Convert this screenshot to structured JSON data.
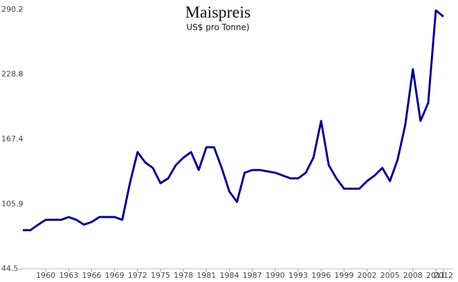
{
  "chart_data": {
    "type": "line",
    "title": "Maispreis",
    "subtitle": "US$ pro Tonne)",
    "categories": [
      null,
      null,
      null,
      "1960",
      null,
      null,
      "1963",
      null,
      null,
      "1966",
      null,
      null,
      "1969",
      null,
      null,
      "1972",
      null,
      null,
      "1975",
      null,
      null,
      "1978",
      null,
      null,
      "1981",
      null,
      null,
      "1984",
      null,
      null,
      "1987",
      null,
      null,
      "1990",
      null,
      null,
      "1993",
      null,
      null,
      "1996",
      null,
      null,
      "1999",
      null,
      null,
      "2002",
      null,
      null,
      "2005",
      null,
      null,
      "2008",
      null,
      null,
      "2011",
      "2012"
    ],
    "series": [
      {
        "color": "#00008b",
        "values": [
          81.2,
          81.2,
          86.4,
          91,
          91,
          91,
          93.6,
          91,
          86.4,
          89,
          93.6,
          93.6,
          93.6,
          91,
          125.7,
          155.2,
          145.4,
          140.2,
          125.7,
          130.3,
          142.8,
          150,
          155.2,
          138.2,
          159.8,
          159.8,
          140.2,
          117.9,
          108,
          135.6,
          138.2,
          138.2,
          136.9,
          135.6,
          133,
          130.3,
          130.3,
          135.6,
          150,
          184.7,
          142.8,
          130.3,
          120.5,
          120.5,
          120.5,
          127.7,
          133,
          140.2,
          127.7,
          148,
          180.8,
          233.8,
          184.7,
          201.7,
          289.5,
          283.6
        ]
      }
    ],
    "ylim": [
      44.5,
      290.2
    ],
    "yticks": [
      44.5,
      105.9,
      167.4,
      228.8,
      290.2
    ]
  }
}
